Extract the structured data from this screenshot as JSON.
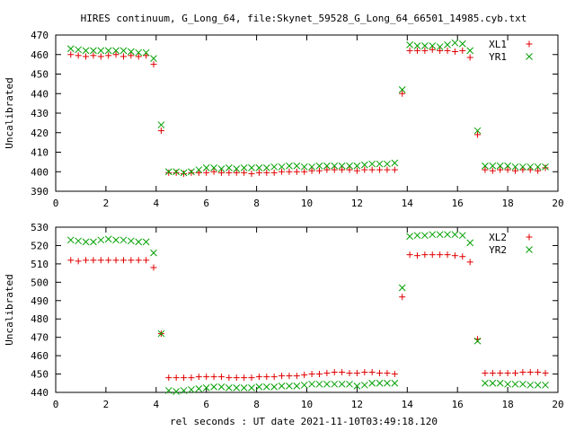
{
  "header": {
    "title": "HIRES continuum, G_Long_64, file:Skynet_59528_G_Long_64_66501_14985.cyb.txt"
  },
  "footer": {
    "xlabel": "rel seconds : UT date 2021-11-10T03:49:18.120"
  },
  "colors": {
    "series_left": "#e00000",
    "series_right": "#00a000",
    "axes": "#000000",
    "background": "#ffffff"
  },
  "chart_data": [
    {
      "type": "scatter",
      "title": "",
      "xlabel": "",
      "ylabel": "Uncalibrated",
      "xlim": [
        0,
        20
      ],
      "ylim": [
        390,
        470
      ],
      "xticks": [
        0,
        2,
        4,
        6,
        8,
        10,
        12,
        14,
        16,
        18,
        20
      ],
      "yticks": [
        390,
        400,
        410,
        420,
        430,
        440,
        450,
        460,
        470
      ],
      "grid": false,
      "legend_position": "top-right",
      "series": [
        {
          "name": "XL1",
          "marker": "plus",
          "color": "#e00000",
          "x": [
            0.6,
            0.9,
            1.2,
            1.5,
            1.8,
            2.1,
            2.4,
            2.7,
            3.0,
            3.3,
            3.6,
            3.9,
            4.2,
            4.5,
            4.8,
            5.1,
            5.4,
            5.7,
            6.0,
            6.3,
            6.6,
            6.9,
            7.2,
            7.5,
            7.8,
            8.1,
            8.4,
            8.7,
            9.0,
            9.3,
            9.6,
            9.9,
            10.2,
            10.5,
            10.8,
            11.1,
            11.4,
            11.7,
            12.0,
            12.3,
            12.6,
            12.9,
            13.2,
            13.5,
            13.8,
            14.1,
            14.4,
            14.7,
            15.0,
            15.3,
            15.6,
            15.9,
            16.2,
            16.5,
            16.8,
            17.1,
            17.4,
            17.7,
            18.0,
            18.3,
            18.6,
            18.9,
            19.2,
            19.5
          ],
          "y": [
            460,
            459.5,
            459,
            459.5,
            459,
            459.5,
            460,
            459,
            459.5,
            459,
            459.5,
            455,
            421,
            399.5,
            399.5,
            399,
            399.5,
            399.5,
            399.5,
            400,
            399.5,
            399.5,
            399.5,
            399.5,
            399,
            399.5,
            399.5,
            399.5,
            400,
            400,
            400,
            400,
            400.5,
            400.5,
            401,
            401,
            401,
            401,
            400.5,
            401,
            401,
            401,
            401,
            401,
            440,
            462,
            462,
            462,
            462.5,
            462,
            462,
            461.5,
            462,
            458.5,
            419,
            401,
            400.5,
            401,
            401,
            400.5,
            401,
            401,
            400.5,
            402
          ]
        },
        {
          "name": "YR1",
          "marker": "cross",
          "color": "#00a000",
          "x": [
            0.6,
            0.9,
            1.2,
            1.5,
            1.8,
            2.1,
            2.4,
            2.7,
            3.0,
            3.3,
            3.6,
            3.9,
            4.2,
            4.5,
            4.8,
            5.1,
            5.4,
            5.7,
            6.0,
            6.3,
            6.6,
            6.9,
            7.2,
            7.5,
            7.8,
            8.1,
            8.4,
            8.7,
            9.0,
            9.3,
            9.6,
            9.9,
            10.2,
            10.5,
            10.8,
            11.1,
            11.4,
            11.7,
            12.0,
            12.3,
            12.6,
            12.9,
            13.2,
            13.5,
            13.8,
            14.1,
            14.4,
            14.7,
            15.0,
            15.3,
            15.6,
            15.9,
            16.2,
            16.5,
            16.8,
            17.1,
            17.4,
            17.7,
            18.0,
            18.3,
            18.6,
            18.9,
            19.2,
            19.5
          ],
          "y": [
            463,
            462.5,
            462,
            462,
            462,
            462,
            462,
            462,
            461.5,
            461,
            461,
            458,
            424,
            400,
            400,
            399.5,
            400,
            401,
            402,
            402,
            401.5,
            402,
            401.5,
            402,
            402,
            402,
            402,
            402.5,
            402.5,
            403,
            403,
            402.5,
            402.5,
            403,
            403,
            403,
            403,
            403,
            403,
            403.5,
            404,
            404,
            404,
            404.5,
            442,
            465,
            464.5,
            464.5,
            464.5,
            464,
            465,
            466,
            465.5,
            462,
            421,
            403,
            403,
            403,
            403,
            402.5,
            402.5,
            402.5,
            402.5,
            402.5
          ]
        }
      ]
    },
    {
      "type": "scatter",
      "title": "",
      "xlabel": "rel seconds : UT date 2021-11-10T03:49:18.120",
      "ylabel": "Uncalibrated",
      "xlim": [
        0,
        20
      ],
      "ylim": [
        440,
        530
      ],
      "xticks": [
        0,
        2,
        4,
        6,
        8,
        10,
        12,
        14,
        16,
        18,
        20
      ],
      "yticks": [
        440,
        450,
        460,
        470,
        480,
        490,
        500,
        510,
        520,
        530
      ],
      "grid": false,
      "legend_position": "top-right",
      "series": [
        {
          "name": "XL2",
          "marker": "plus",
          "color": "#e00000",
          "x": [
            0.6,
            0.9,
            1.2,
            1.5,
            1.8,
            2.1,
            2.4,
            2.7,
            3.0,
            3.3,
            3.6,
            3.9,
            4.2,
            4.5,
            4.8,
            5.1,
            5.4,
            5.7,
            6.0,
            6.3,
            6.6,
            6.9,
            7.2,
            7.5,
            7.8,
            8.1,
            8.4,
            8.7,
            9.0,
            9.3,
            9.6,
            9.9,
            10.2,
            10.5,
            10.8,
            11.1,
            11.4,
            11.7,
            12.0,
            12.3,
            12.6,
            12.9,
            13.2,
            13.5,
            13.8,
            14.1,
            14.4,
            14.7,
            15.0,
            15.3,
            15.6,
            15.9,
            16.2,
            16.5,
            16.8,
            17.1,
            17.4,
            17.7,
            18.0,
            18.3,
            18.6,
            18.9,
            19.2,
            19.5
          ],
          "y": [
            512,
            511.5,
            512,
            512,
            512,
            512,
            512,
            512,
            512,
            512,
            512,
            508,
            472,
            448,
            448,
            448,
            448,
            448.5,
            448.5,
            448.5,
            448.5,
            448,
            448,
            448,
            448,
            448.5,
            448.5,
            448.5,
            449,
            449,
            449,
            449.5,
            450,
            450,
            450.5,
            451,
            451,
            450.5,
            450.5,
            451,
            451,
            450.5,
            450.5,
            450,
            492,
            515,
            514.5,
            515,
            515,
            515,
            515,
            514.5,
            514,
            511,
            469,
            450.5,
            450.5,
            450.5,
            450.5,
            450.5,
            451,
            451,
            451,
            450.5
          ]
        },
        {
          "name": "YR2",
          "marker": "cross",
          "color": "#00a000",
          "x": [
            0.6,
            0.9,
            1.2,
            1.5,
            1.8,
            2.1,
            2.4,
            2.7,
            3.0,
            3.3,
            3.6,
            3.9,
            4.2,
            4.5,
            4.8,
            5.1,
            5.4,
            5.7,
            6.0,
            6.3,
            6.6,
            6.9,
            7.2,
            7.5,
            7.8,
            8.1,
            8.4,
            8.7,
            9.0,
            9.3,
            9.6,
            9.9,
            10.2,
            10.5,
            10.8,
            11.1,
            11.4,
            11.7,
            12.0,
            12.3,
            12.6,
            12.9,
            13.2,
            13.5,
            13.8,
            14.1,
            14.4,
            14.7,
            15.0,
            15.3,
            15.6,
            15.9,
            16.2,
            16.5,
            16.8,
            17.1,
            17.4,
            17.7,
            18.0,
            18.3,
            18.6,
            18.9,
            19.2,
            19.5
          ],
          "y": [
            523,
            522.5,
            522,
            522,
            523,
            523.5,
            523,
            523,
            522.5,
            522,
            522,
            516,
            472,
            441,
            440.5,
            441,
            441.5,
            442,
            442.5,
            443,
            443,
            442.5,
            442.5,
            442.5,
            442.5,
            443,
            443,
            443,
            443.5,
            443.5,
            443.5,
            444,
            444.5,
            444.5,
            444.5,
            444.5,
            444.5,
            444.5,
            443.5,
            444,
            445,
            445,
            445,
            445,
            497,
            525,
            525.5,
            525.5,
            526,
            526,
            526,
            526,
            525.5,
            521.5,
            468,
            445,
            445,
            445,
            444.5,
            444.5,
            444.5,
            444,
            444,
            444
          ]
        }
      ]
    }
  ]
}
